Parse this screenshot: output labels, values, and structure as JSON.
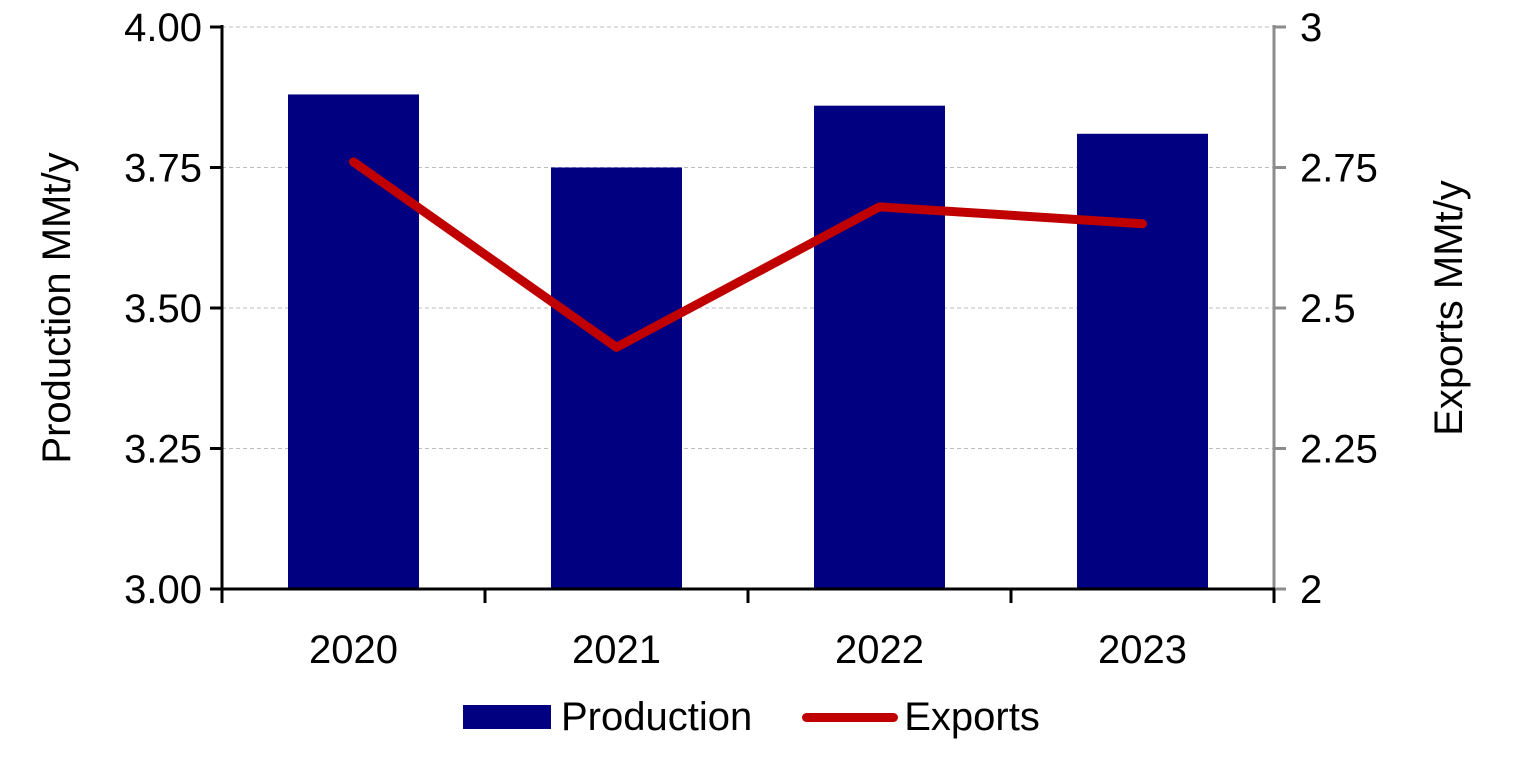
{
  "chart_data": {
    "type": "bar",
    "title": "",
    "categories": [
      "2020",
      "2021",
      "2022",
      "2023"
    ],
    "series": [
      {
        "name": "Production",
        "type": "bar",
        "axis": "left",
        "color": "#000080",
        "values": [
          3.88,
          3.75,
          3.86,
          3.81
        ]
      },
      {
        "name": "Exports",
        "type": "line",
        "axis": "right",
        "color": "#c00000",
        "values": [
          2.76,
          2.43,
          2.68,
          2.65
        ]
      }
    ],
    "xlabel": "",
    "ylabel": "Production MMt/y",
    "y2label": "Exports MMt/y",
    "ylim": [
      3.0,
      4.0
    ],
    "y2lim": [
      2,
      3
    ],
    "yticks": [
      "3.00",
      "3.25",
      "3.50",
      "3.75",
      "4.00"
    ],
    "y2ticks": [
      "2",
      "2.25",
      "2.5",
      "2.75",
      "3"
    ],
    "grid": true,
    "legend_position": "bottom"
  },
  "legend": {
    "production": "Production",
    "exports": "Exports"
  }
}
